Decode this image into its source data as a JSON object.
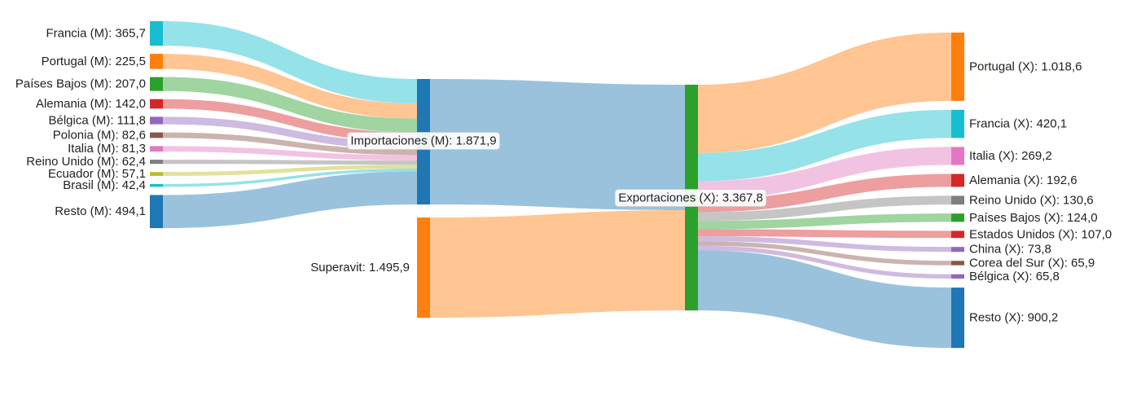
{
  "chart_data": {
    "type": "sankey",
    "unit": "",
    "nodes": [
      {
        "id": "fr_m",
        "label": "Francia (M): 365,7",
        "value": 365.7,
        "color": "#17becf",
        "column": 0
      },
      {
        "id": "pt_m",
        "label": "Portugal (M): 225,5",
        "value": 225.5,
        "color": "#ff7f0e",
        "column": 0
      },
      {
        "id": "nl_m",
        "label": "Países Bajos (M): 207,0",
        "value": 207.0,
        "color": "#2ca02c",
        "column": 0
      },
      {
        "id": "de_m",
        "label": "Alemania (M): 142,0",
        "value": 142.0,
        "color": "#d62728",
        "column": 0
      },
      {
        "id": "be_m",
        "label": "Bélgica (M): 111,8",
        "value": 111.8,
        "color": "#9467bd",
        "column": 0
      },
      {
        "id": "pl_m",
        "label": "Polonia (M): 82,6",
        "value": 82.6,
        "color": "#8c564b",
        "column": 0
      },
      {
        "id": "it_m",
        "label": "Italia (M): 81,3",
        "value": 81.3,
        "color": "#e377c2",
        "column": 0
      },
      {
        "id": "uk_m",
        "label": "Reino Unido (M): 62,4",
        "value": 62.4,
        "color": "#7f7f7f",
        "column": 0
      },
      {
        "id": "ec_m",
        "label": "Ecuador (M): 57,1",
        "value": 57.1,
        "color": "#bcbd22",
        "column": 0
      },
      {
        "id": "br_m",
        "label": "Brasil (M): 42,4",
        "value": 42.4,
        "color": "#17becf",
        "column": 0
      },
      {
        "id": "rest_m",
        "label": "Resto (M): 494,1",
        "value": 494.1,
        "color": "#1f77b4",
        "column": 0
      },
      {
        "id": "imp",
        "label": "Importaciones (M): 1.871,9",
        "value": 1871.9,
        "color": "#1f77b4",
        "column": 1
      },
      {
        "id": "sup",
        "label": "Superavit: 1.495,9",
        "value": 1495.9,
        "color": "#ff7f0e",
        "column": 1
      },
      {
        "id": "exp",
        "label": "Exportaciones (X): 3.367,8",
        "value": 3367.8,
        "color": "#2ca02c",
        "column": 2
      },
      {
        "id": "pt_x",
        "label": "Portugal (X): 1.018,6",
        "value": 1018.6,
        "color": "#ff7f0e",
        "column": 3
      },
      {
        "id": "fr_x",
        "label": "Francia (X): 420,1",
        "value": 420.1,
        "color": "#17becf",
        "column": 3
      },
      {
        "id": "it_x",
        "label": "Italia (X): 269,2",
        "value": 269.2,
        "color": "#e377c2",
        "column": 3
      },
      {
        "id": "de_x",
        "label": "Alemania (X): 192,6",
        "value": 192.6,
        "color": "#d62728",
        "column": 3
      },
      {
        "id": "uk_x",
        "label": "Reino Unido (X): 130,6",
        "value": 130.6,
        "color": "#7f7f7f",
        "column": 3
      },
      {
        "id": "nl_x",
        "label": "Países Bajos (X): 124,0",
        "value": 124.0,
        "color": "#2ca02c",
        "column": 3
      },
      {
        "id": "us_x",
        "label": "Estados Unidos (X): 107,0",
        "value": 107.0,
        "color": "#d62728",
        "column": 3
      },
      {
        "id": "cn_x",
        "label": "China (X): 73,8",
        "value": 73.8,
        "color": "#9467bd",
        "column": 3
      },
      {
        "id": "kr_x",
        "label": "Corea del Sur (X): 65,9",
        "value": 65.9,
        "color": "#8c564b",
        "column": 3
      },
      {
        "id": "be_x",
        "label": "Bélgica (X): 65,8",
        "value": 65.8,
        "color": "#9467bd",
        "column": 3
      },
      {
        "id": "rest_x",
        "label": "Resto (X): 900,2",
        "value": 900.2,
        "color": "#1f77b4",
        "column": 3
      }
    ],
    "links": [
      {
        "source": "fr_m",
        "target": "imp",
        "value": 365.7
      },
      {
        "source": "pt_m",
        "target": "imp",
        "value": 225.5
      },
      {
        "source": "nl_m",
        "target": "imp",
        "value": 207.0
      },
      {
        "source": "de_m",
        "target": "imp",
        "value": 142.0
      },
      {
        "source": "be_m",
        "target": "imp",
        "value": 111.8
      },
      {
        "source": "pl_m",
        "target": "imp",
        "value": 82.6
      },
      {
        "source": "it_m",
        "target": "imp",
        "value": 81.3
      },
      {
        "source": "uk_m",
        "target": "imp",
        "value": 62.4
      },
      {
        "source": "ec_m",
        "target": "imp",
        "value": 57.1
      },
      {
        "source": "br_m",
        "target": "imp",
        "value": 42.4
      },
      {
        "source": "rest_m",
        "target": "imp",
        "value": 494.1
      },
      {
        "source": "imp",
        "target": "exp",
        "value": 1871.9
      },
      {
        "source": "sup",
        "target": "exp",
        "value": 1495.9
      },
      {
        "source": "exp",
        "target": "pt_x",
        "value": 1018.6
      },
      {
        "source": "exp",
        "target": "fr_x",
        "value": 420.1
      },
      {
        "source": "exp",
        "target": "it_x",
        "value": 269.2
      },
      {
        "source": "exp",
        "target": "de_x",
        "value": 192.6
      },
      {
        "source": "exp",
        "target": "uk_x",
        "value": 130.6
      },
      {
        "source": "exp",
        "target": "nl_x",
        "value": 124.0
      },
      {
        "source": "exp",
        "target": "us_x",
        "value": 107.0
      },
      {
        "source": "exp",
        "target": "cn_x",
        "value": 73.8
      },
      {
        "source": "exp",
        "target": "kr_x",
        "value": 65.9
      },
      {
        "source": "exp",
        "target": "be_x",
        "value": 65.8
      },
      {
        "source": "exp",
        "target": "rest_x",
        "value": 900.2
      }
    ],
    "highlighted_labels": [
      "imp",
      "exp"
    ]
  }
}
